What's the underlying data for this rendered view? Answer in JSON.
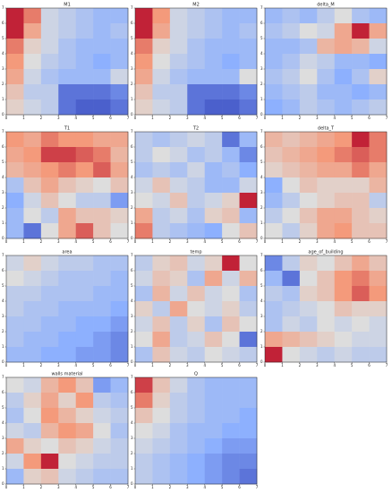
{
  "chart_data": [
    {
      "type": "heatmap",
      "title": "M1",
      "colormap": "coolwarm",
      "clim": [
        0,
        1
      ],
      "xlim": [
        0,
        7
      ],
      "ylim": [
        0,
        7
      ],
      "xticks": [
        0,
        1,
        2,
        3,
        4,
        5,
        6,
        7
      ],
      "yticks": [
        0,
        1,
        2,
        3,
        4,
        5,
        6,
        7
      ],
      "values": [
        [
          0.95,
          0.8,
          0.45,
          0.4,
          0.35,
          0.3,
          0.3
        ],
        [
          0.95,
          0.7,
          0.45,
          0.4,
          0.35,
          0.3,
          0.35
        ],
        [
          0.8,
          0.55,
          0.45,
          0.35,
          0.3,
          0.3,
          0.3
        ],
        [
          0.75,
          0.5,
          0.4,
          0.35,
          0.3,
          0.25,
          0.3
        ],
        [
          0.7,
          0.45,
          0.35,
          0.3,
          0.3,
          0.3,
          0.45
        ],
        [
          0.6,
          0.4,
          0.4,
          0.1,
          0.1,
          0.1,
          0.15
        ],
        [
          0.55,
          0.45,
          0.4,
          0.1,
          0.05,
          0.05,
          0.1
        ]
      ]
    },
    {
      "type": "heatmap",
      "title": "M2",
      "colormap": "coolwarm",
      "clim": [
        0,
        1
      ],
      "xlim": [
        0,
        7
      ],
      "ylim": [
        0,
        7
      ],
      "xticks": [
        0,
        1,
        2,
        3,
        4,
        5,
        6,
        7
      ],
      "yticks": [
        0,
        1,
        2,
        3,
        4,
        5,
        6,
        7
      ],
      "values": [
        [
          0.95,
          0.75,
          0.45,
          0.4,
          0.35,
          0.3,
          0.3
        ],
        [
          0.95,
          0.7,
          0.45,
          0.4,
          0.35,
          0.3,
          0.35
        ],
        [
          0.8,
          0.55,
          0.45,
          0.35,
          0.3,
          0.3,
          0.3
        ],
        [
          0.75,
          0.5,
          0.4,
          0.35,
          0.3,
          0.25,
          0.3
        ],
        [
          0.7,
          0.45,
          0.35,
          0.3,
          0.3,
          0.3,
          0.5
        ],
        [
          0.6,
          0.4,
          0.4,
          0.1,
          0.1,
          0.1,
          0.15
        ],
        [
          0.55,
          0.45,
          0.4,
          0.1,
          0.05,
          0.05,
          0.1
        ]
      ]
    },
    {
      "type": "heatmap",
      "title": "delta_M",
      "colormap": "coolwarm",
      "clim": [
        0,
        1
      ],
      "xlim": [
        0,
        7
      ],
      "ylim": [
        0,
        7
      ],
      "xticks": [
        0,
        1,
        2,
        3,
        4,
        5,
        6,
        7
      ],
      "yticks": [
        0,
        1,
        2,
        3,
        4,
        5,
        6,
        7
      ],
      "values": [
        [
          0.3,
          0.35,
          0.3,
          0.4,
          0.5,
          0.35,
          0.3
        ],
        [
          0.35,
          0.4,
          0.5,
          0.45,
          0.7,
          0.95,
          0.7
        ],
        [
          0.3,
          0.3,
          0.35,
          0.65,
          0.7,
          0.65,
          0.45
        ],
        [
          0.3,
          0.35,
          0.45,
          0.4,
          0.3,
          0.3,
          0.25
        ],
        [
          0.35,
          0.4,
          0.5,
          0.35,
          0.25,
          0.35,
          0.55
        ],
        [
          0.3,
          0.35,
          0.4,
          0.3,
          0.3,
          0.25,
          0.3
        ],
        [
          0.25,
          0.3,
          0.4,
          0.35,
          0.3,
          0.35,
          0.4
        ]
      ]
    },
    {
      "type": "heatmap",
      "title": "T1",
      "colormap": "coolwarm",
      "clim": [
        0,
        1
      ],
      "xlim": [
        0,
        7
      ],
      "ylim": [
        0,
        7
      ],
      "xticks": [
        0,
        1,
        2,
        3,
        4,
        5,
        6,
        7
      ],
      "yticks": [
        0,
        1,
        2,
        3,
        4,
        5,
        6,
        7
      ],
      "values": [
        [
          0.75,
          0.7,
          0.8,
          0.75,
          0.75,
          0.7,
          0.7
        ],
        [
          0.7,
          0.75,
          0.9,
          0.9,
          0.85,
          0.8,
          0.65
        ],
        [
          0.65,
          0.7,
          0.75,
          0.8,
          0.75,
          0.85,
          0.7
        ],
        [
          0.35,
          0.6,
          0.7,
          0.6,
          0.55,
          0.5,
          0.6
        ],
        [
          0.25,
          0.45,
          0.6,
          0.5,
          0.4,
          0.4,
          0.2
        ],
        [
          0.3,
          0.5,
          0.4,
          0.7,
          0.6,
          0.6,
          0.55
        ],
        [
          0.3,
          0.1,
          0.5,
          0.7,
          0.85,
          0.6,
          0.5
        ]
      ]
    },
    {
      "type": "heatmap",
      "title": "T2",
      "colormap": "coolwarm",
      "clim": [
        0,
        1
      ],
      "xlim": [
        0,
        7
      ],
      "ylim": [
        0,
        7
      ],
      "xticks": [
        0,
        1,
        2,
        3,
        4,
        5,
        6,
        7
      ],
      "yticks": [
        0,
        1,
        2,
        3,
        4,
        5,
        6,
        7
      ],
      "values": [
        [
          0.4,
          0.35,
          0.4,
          0.45,
          0.4,
          0.1,
          0.3
        ],
        [
          0.4,
          0.5,
          0.45,
          0.35,
          0.4,
          0.3,
          0.15
        ],
        [
          0.35,
          0.4,
          0.35,
          0.45,
          0.3,
          0.35,
          0.25
        ],
        [
          0.45,
          0.6,
          0.45,
          0.4,
          0.3,
          0.3,
          0.45
        ],
        [
          0.5,
          0.45,
          0.6,
          0.4,
          0.45,
          0.55,
          0.95
        ],
        [
          0.7,
          0.4,
          0.45,
          0.35,
          0.55,
          0.6,
          0.3
        ],
        [
          0.8,
          0.4,
          0.35,
          0.3,
          0.25,
          0.5,
          0.6
        ]
      ]
    },
    {
      "type": "heatmap",
      "title": "delta_T",
      "colormap": "coolwarm",
      "clim": [
        0,
        1
      ],
      "xlim": [
        0,
        7
      ],
      "ylim": [
        0,
        7
      ],
      "xticks": [
        0,
        1,
        2,
        3,
        4,
        5,
        6,
        7
      ],
      "yticks": [
        0,
        1,
        2,
        3,
        4,
        5,
        6,
        7
      ],
      "values": [
        [
          0.65,
          0.6,
          0.65,
          0.7,
          0.75,
          0.95,
          0.8
        ],
        [
          0.6,
          0.65,
          0.7,
          0.75,
          0.8,
          0.85,
          0.8
        ],
        [
          0.55,
          0.6,
          0.65,
          0.7,
          0.7,
          0.8,
          0.7
        ],
        [
          0.25,
          0.5,
          0.6,
          0.55,
          0.55,
          0.55,
          0.65
        ],
        [
          0.3,
          0.4,
          0.5,
          0.55,
          0.6,
          0.6,
          0.4
        ],
        [
          0.4,
          0.5,
          0.6,
          0.7,
          0.7,
          0.6,
          0.55
        ],
        [
          0.5,
          0.4,
          0.55,
          0.7,
          0.75,
          0.6,
          0.6
        ]
      ]
    },
    {
      "type": "heatmap",
      "title": "area",
      "colormap": "coolwarm",
      "clim": [
        0,
        1
      ],
      "xlim": [
        0,
        7
      ],
      "ylim": [
        0,
        7
      ],
      "xticks": [
        0,
        1,
        2,
        3,
        4,
        5,
        6,
        7
      ],
      "yticks": [
        0,
        1,
        2,
        3,
        4,
        5,
        6,
        7
      ],
      "values": [
        [
          0.45,
          0.55,
          0.45,
          0.4,
          0.4,
          0.35,
          0.35
        ],
        [
          0.5,
          0.45,
          0.4,
          0.35,
          0.35,
          0.35,
          0.3
        ],
        [
          0.4,
          0.4,
          0.35,
          0.35,
          0.35,
          0.3,
          0.3
        ],
        [
          0.4,
          0.35,
          0.35,
          0.3,
          0.3,
          0.3,
          0.25
        ],
        [
          0.35,
          0.35,
          0.3,
          0.3,
          0.25,
          0.25,
          0.2
        ],
        [
          0.35,
          0.3,
          0.3,
          0.25,
          0.25,
          0.2,
          0.15
        ],
        [
          0.3,
          0.3,
          0.25,
          0.25,
          0.2,
          0.2,
          0.15
        ]
      ]
    },
    {
      "type": "heatmap",
      "title": "temp",
      "colormap": "coolwarm",
      "clim": [
        0,
        1
      ],
      "xlim": [
        0,
        7
      ],
      "ylim": [
        0,
        7
      ],
      "xticks": [
        0,
        1,
        2,
        3,
        4,
        5,
        6,
        7
      ],
      "yticks": [
        0,
        1,
        2,
        3,
        4,
        5,
        6,
        7
      ],
      "values": [
        [
          0.4,
          0.55,
          0.6,
          0.45,
          0.55,
          0.95,
          0.5
        ],
        [
          0.45,
          0.6,
          0.55,
          0.35,
          0.7,
          0.45,
          0.65
        ],
        [
          0.35,
          0.65,
          0.45,
          0.6,
          0.45,
          0.5,
          0.35
        ],
        [
          0.55,
          0.4,
          0.7,
          0.5,
          0.45,
          0.55,
          0.4
        ],
        [
          0.45,
          0.6,
          0.4,
          0.55,
          0.35,
          0.6,
          0.5
        ],
        [
          0.5,
          0.7,
          0.4,
          0.45,
          0.6,
          0.5,
          0.1
        ],
        [
          0.35,
          0.6,
          0.45,
          0.4,
          0.5,
          0.45,
          0.4
        ]
      ]
    },
    {
      "type": "heatmap",
      "title": "age_of_building",
      "colormap": "coolwarm",
      "clim": [
        0,
        1
      ],
      "xlim": [
        0,
        7
      ],
      "ylim": [
        0,
        7
      ],
      "xticks": [
        0,
        1,
        2,
        3,
        4,
        5,
        6,
        7
      ],
      "yticks": [
        0,
        1,
        2,
        3,
        4,
        5,
        6,
        7
      ],
      "values": [
        [
          0.15,
          0.4,
          0.55,
          0.5,
          0.6,
          0.7,
          0.6
        ],
        [
          0.3,
          0.1,
          0.5,
          0.6,
          0.75,
          0.8,
          0.7
        ],
        [
          0.4,
          0.35,
          0.55,
          0.6,
          0.75,
          0.85,
          0.75
        ],
        [
          0.35,
          0.4,
          0.45,
          0.5,
          0.6,
          0.55,
          0.55
        ],
        [
          0.35,
          0.45,
          0.4,
          0.5,
          0.45,
          0.5,
          0.45
        ],
        [
          0.7,
          0.65,
          0.6,
          0.55,
          0.5,
          0.45,
          0.45
        ],
        [
          0.95,
          0.5,
          0.45,
          0.4,
          0.45,
          0.4,
          0.4
        ]
      ]
    },
    {
      "type": "heatmap",
      "title": "walls material",
      "colormap": "coolwarm",
      "clim": [
        0,
        1
      ],
      "xlim": [
        0,
        7
      ],
      "ylim": [
        0,
        7
      ],
      "xticks": [
        0,
        1,
        2,
        3,
        4,
        5,
        6,
        7
      ],
      "yticks": [
        0,
        1,
        2,
        3,
        4,
        5,
        6,
        7
      ],
      "values": [
        [
          0.5,
          0.45,
          0.65,
          0.75,
          0.6,
          0.2,
          0.3
        ],
        [
          0.4,
          0.55,
          0.7,
          0.55,
          0.75,
          0.4,
          0.35
        ],
        [
          0.35,
          0.5,
          0.75,
          0.65,
          0.55,
          0.45,
          0.4
        ],
        [
          0.45,
          0.4,
          0.65,
          0.75,
          0.7,
          0.5,
          0.35
        ],
        [
          0.7,
          0.55,
          0.5,
          0.6,
          0.55,
          0.45,
          0.4
        ],
        [
          0.45,
          0.75,
          0.95,
          0.5,
          0.45,
          0.4,
          0.4
        ],
        [
          0.3,
          0.55,
          0.6,
          0.45,
          0.4,
          0.35,
          0.35
        ]
      ]
    },
    {
      "type": "heatmap",
      "title": "Q",
      "colormap": "coolwarm",
      "clim": [
        0,
        1
      ],
      "xlim": [
        0,
        7
      ],
      "ylim": [
        0,
        7
      ],
      "xticks": [
        0,
        1,
        2,
        3,
        4,
        5,
        6,
        7
      ],
      "yticks": [
        0,
        1,
        2,
        3,
        4,
        5,
        6,
        7
      ],
      "values": [
        [
          0.9,
          0.6,
          0.45,
          0.35,
          0.3,
          0.3,
          0.3
        ],
        [
          0.8,
          0.55,
          0.4,
          0.35,
          0.3,
          0.3,
          0.3
        ],
        [
          0.6,
          0.5,
          0.4,
          0.35,
          0.3,
          0.3,
          0.25
        ],
        [
          0.5,
          0.45,
          0.35,
          0.3,
          0.3,
          0.25,
          0.25
        ],
        [
          0.45,
          0.4,
          0.35,
          0.3,
          0.25,
          0.2,
          0.2
        ],
        [
          0.4,
          0.35,
          0.3,
          0.25,
          0.2,
          0.15,
          0.15
        ],
        [
          0.4,
          0.35,
          0.3,
          0.25,
          0.2,
          0.15,
          0.1
        ]
      ]
    }
  ]
}
